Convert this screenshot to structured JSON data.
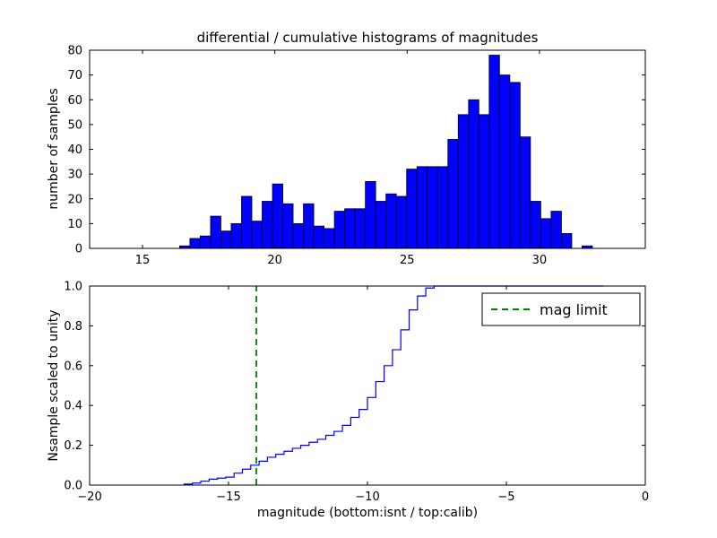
{
  "figure": {
    "background": "#ffffff",
    "accent_blue": "#0000ff",
    "accent_green": "#008000"
  },
  "chart_data": [
    {
      "type": "bar",
      "title": "differential / cumulative histograms of magnitudes",
      "xlabel": "",
      "ylabel": "number of samples",
      "xlim": [
        13,
        34
      ],
      "ylim": [
        0,
        80
      ],
      "xticks": [
        15,
        20,
        25,
        30
      ],
      "xticklabels": [
        "15",
        "20",
        "25",
        "30"
      ],
      "yticks": [
        0,
        10,
        20,
        30,
        40,
        50,
        60,
        70,
        80
      ],
      "yticklabels": [
        "0",
        "10",
        "20",
        "30",
        "40",
        "50",
        "60",
        "70",
        "80"
      ],
      "grid": false,
      "bar_color": "#0000ff",
      "bar_edge_color": "#000000",
      "bin_start": 16.4,
      "bin_width": 0.39,
      "values": [
        1,
        4,
        5,
        13,
        7,
        10,
        21,
        11,
        19,
        26,
        18,
        10,
        18,
        9,
        8,
        15,
        16,
        16,
        27,
        19,
        22,
        21,
        32,
        33,
        33,
        33,
        44,
        54,
        60,
        54,
        78,
        70,
        67,
        45,
        19,
        12,
        15,
        6,
        0,
        1
      ]
    },
    {
      "type": "line",
      "title": "",
      "xlabel": "magnitude (bottom:isnt / top:calib)",
      "ylabel": "Nsample scaled to unity",
      "xlim": [
        -20,
        0
      ],
      "ylim": [
        0,
        1
      ],
      "xticks": [
        -20,
        -15,
        -10,
        -5,
        0
      ],
      "xticklabels": [
        "−20",
        "−15",
        "−10",
        "−5",
        "0"
      ],
      "yticks": [
        0.0,
        0.2,
        0.4,
        0.6,
        0.8,
        1.0
      ],
      "yticklabels": [
        "0.0",
        "0.2",
        "0.4",
        "0.6",
        "0.8",
        "1.0"
      ],
      "grid": false,
      "line_color": "#0000ff",
      "step_start": -16.6,
      "step_width": 0.3,
      "fractions": [
        0.005,
        0.01,
        0.02,
        0.03,
        0.035,
        0.04,
        0.06,
        0.08,
        0.1,
        0.12,
        0.14,
        0.155,
        0.17,
        0.185,
        0.2,
        0.215,
        0.23,
        0.25,
        0.27,
        0.3,
        0.34,
        0.38,
        0.44,
        0.52,
        0.6,
        0.68,
        0.78,
        0.88,
        0.95,
        0.99,
        1.0
      ],
      "flat_end": -1.5,
      "vline": {
        "x": -14,
        "color": "#008000",
        "style": "dashed",
        "label": "mag limit"
      },
      "legend": {
        "label": "mag limit",
        "position": "upper right"
      }
    }
  ]
}
